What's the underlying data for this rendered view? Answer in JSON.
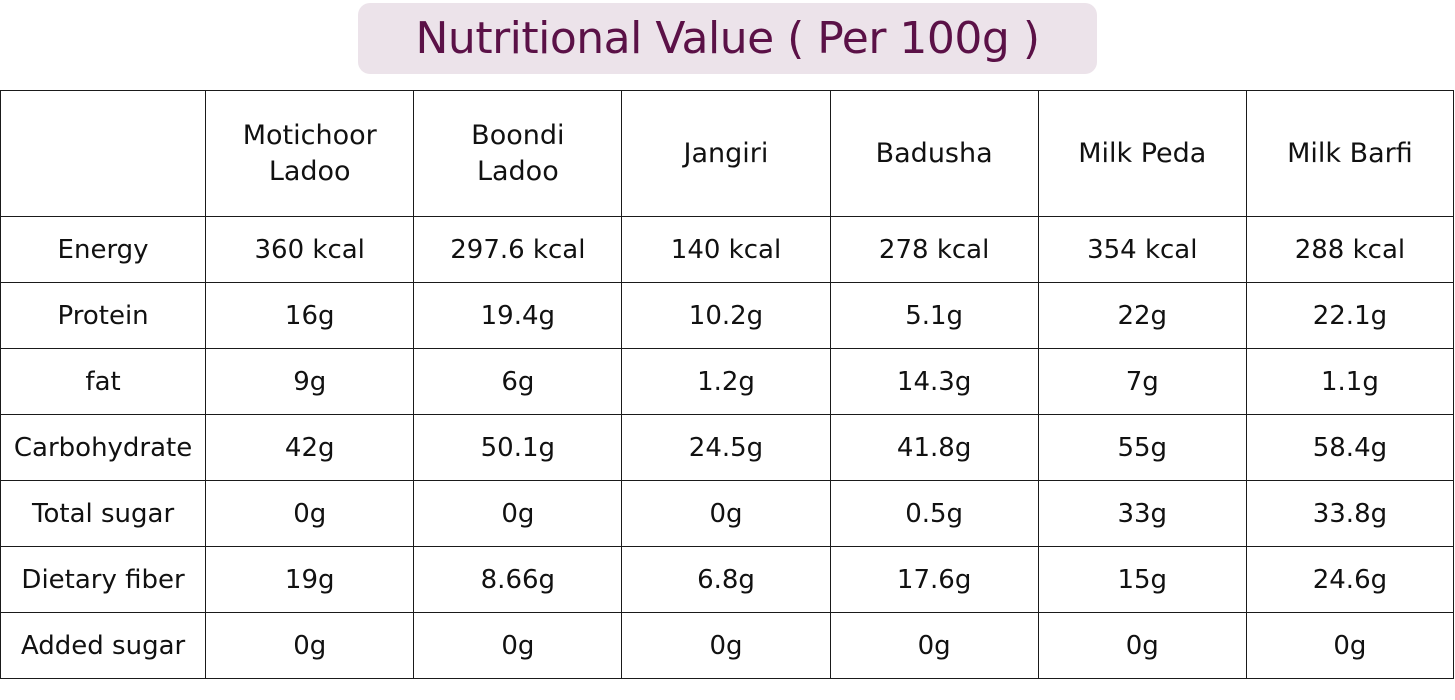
{
  "title": "Nutritional Value ( Per 100g )",
  "products": [
    "Motichoor Ladoo",
    "Boondi Ladoo",
    "Jangiri",
    "Badusha",
    "Milk Peda",
    "Milk Barfi"
  ],
  "rows": [
    {
      "label": "Energy",
      "values": [
        "360 kcal",
        "297.6 kcal",
        "140 kcal",
        "278 kcal",
        "354 kcal",
        "288 kcal"
      ]
    },
    {
      "label": "Protein",
      "values": [
        "16g",
        "19.4g",
        "10.2g",
        "5.1g",
        "22g",
        "22.1g"
      ]
    },
    {
      "label": "fat",
      "values": [
        "9g",
        "6g",
        "1.2g",
        "14.3g",
        "7g",
        "1.1g"
      ]
    },
    {
      "label": "Carbohydrate",
      "values": [
        "42g",
        "50.1g",
        "24.5g",
        "41.8g",
        "55g",
        "58.4g"
      ]
    },
    {
      "label": "Total sugar",
      "values": [
        "0g",
        "0g",
        "0g",
        "0.5g",
        "33g",
        "33.8g"
      ]
    },
    {
      "label": "Dietary fiber",
      "values": [
        "19g",
        "8.66g",
        "6.8g",
        "17.6g",
        "15g",
        "24.6g"
      ]
    },
    {
      "label": "Added sugar",
      "values": [
        "0g",
        "0g",
        "0g",
        "0g",
        "0g",
        "0g"
      ]
    }
  ],
  "colors": {
    "title_text": "#5b1147",
    "title_background": "#ece3ea",
    "border": "#1a1a1a"
  }
}
